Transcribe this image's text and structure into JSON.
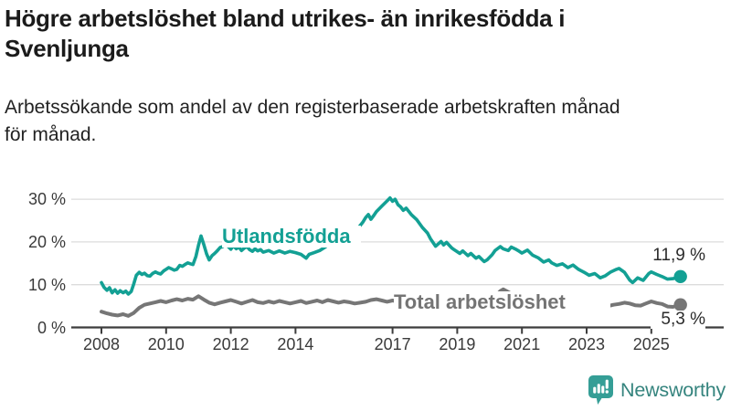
{
  "header": {
    "title": "Högre arbetslöshet bland utrikes- än inrikesfödda i\nSvenljunga",
    "subtitle": "Arbetssökande som andel av den registerbaserade arbetskraften månad\nför månad."
  },
  "colors": {
    "accent_teal": "#13a094",
    "line_gray": "#767676",
    "grid": "#dcdcdc",
    "axis": "#3d3d3d",
    "title_text": "#1b1b1b",
    "tick_text": "#3a3a3a",
    "logo_icon": "#359e96",
    "logo_text": "#35847e"
  },
  "chart_data": {
    "type": "line",
    "unit": "%",
    "grid": true,
    "y_axis": {
      "range": [
        0,
        32
      ],
      "ticks": [
        {
          "value": 0,
          "label": "0 %"
        },
        {
          "value": 10,
          "label": "10 %"
        },
        {
          "value": 20,
          "label": "20 %"
        },
        {
          "value": 30,
          "label": "30 %"
        }
      ]
    },
    "x_axis": {
      "range": [
        2008,
        2025.9
      ],
      "ticks": [
        {
          "value": 2008,
          "label": "2008"
        },
        {
          "value": 2010,
          "label": "2010"
        },
        {
          "value": 2012,
          "label": "2012"
        },
        {
          "value": 2014,
          "label": "2014"
        },
        {
          "value": 2017,
          "label": "2017"
        },
        {
          "value": 2019,
          "label": "2019"
        },
        {
          "value": 2021,
          "label": "2021"
        },
        {
          "value": 2023,
          "label": "2023"
        },
        {
          "value": 2025,
          "label": "2025"
        }
      ]
    },
    "series": [
      {
        "name": "Utlandsfödda",
        "color": "#13a094",
        "end_value": 11.9,
        "end_label": "11,9 %",
        "points": [
          [
            2008.0,
            10.5
          ],
          [
            2008.08,
            9.4
          ],
          [
            2008.17,
            8.7
          ],
          [
            2008.25,
            9.3
          ],
          [
            2008.33,
            8.1
          ],
          [
            2008.42,
            8.8
          ],
          [
            2008.5,
            8.0
          ],
          [
            2008.58,
            8.6
          ],
          [
            2008.67,
            8.1
          ],
          [
            2008.75,
            8.5
          ],
          [
            2008.83,
            7.8
          ],
          [
            2008.92,
            8.4
          ],
          [
            2009.0,
            10.2
          ],
          [
            2009.08,
            12.2
          ],
          [
            2009.17,
            12.9
          ],
          [
            2009.25,
            12.4
          ],
          [
            2009.33,
            12.7
          ],
          [
            2009.42,
            12.1
          ],
          [
            2009.5,
            12.0
          ],
          [
            2009.58,
            12.6
          ],
          [
            2009.67,
            13.0
          ],
          [
            2009.75,
            12.7
          ],
          [
            2009.83,
            12.5
          ],
          [
            2009.92,
            13.2
          ],
          [
            2010.0,
            13.6
          ],
          [
            2010.08,
            14.0
          ],
          [
            2010.17,
            13.7
          ],
          [
            2010.25,
            13.4
          ],
          [
            2010.33,
            13.6
          ],
          [
            2010.42,
            14.5
          ],
          [
            2010.5,
            14.3
          ],
          [
            2010.58,
            14.7
          ],
          [
            2010.67,
            15.1
          ],
          [
            2010.75,
            14.9
          ],
          [
            2010.83,
            14.7
          ],
          [
            2010.92,
            16.6
          ],
          [
            2011.0,
            19.2
          ],
          [
            2011.08,
            21.4
          ],
          [
            2011.17,
            19.3
          ],
          [
            2011.25,
            17.2
          ],
          [
            2011.33,
            15.8
          ],
          [
            2011.42,
            16.8
          ],
          [
            2011.5,
            17.3
          ],
          [
            2011.58,
            17.9
          ],
          [
            2011.67,
            18.7
          ],
          [
            2011.75,
            18.9
          ],
          [
            2011.83,
            19.4
          ],
          [
            2011.92,
            18.9
          ],
          [
            2012.0,
            18.3
          ],
          [
            2012.08,
            19.1
          ],
          [
            2012.17,
            18.4
          ],
          [
            2012.25,
            18.8
          ],
          [
            2012.33,
            18.0
          ],
          [
            2012.42,
            18.6
          ],
          [
            2012.5,
            18.9
          ],
          [
            2012.58,
            18.2
          ],
          [
            2012.67,
            17.8
          ],
          [
            2012.75,
            18.4
          ],
          [
            2012.83,
            17.9
          ],
          [
            2012.92,
            18.2
          ],
          [
            2013.0,
            17.6
          ],
          [
            2013.17,
            18.0
          ],
          [
            2013.33,
            17.4
          ],
          [
            2013.5,
            17.9
          ],
          [
            2013.67,
            17.4
          ],
          [
            2013.83,
            17.8
          ],
          [
            2014.0,
            17.5
          ],
          [
            2014.17,
            17.1
          ],
          [
            2014.33,
            16.2
          ],
          [
            2014.42,
            17.1
          ],
          [
            2014.58,
            17.5
          ],
          [
            2014.75,
            18.0
          ],
          [
            2014.92,
            18.8
          ],
          [
            2015.08,
            19.8
          ],
          [
            2015.25,
            20.4
          ],
          [
            2015.42,
            21.0
          ],
          [
            2015.58,
            22.0
          ],
          [
            2015.75,
            23.2
          ],
          [
            2015.83,
            22.5
          ],
          [
            2015.92,
            23.1
          ],
          [
            2016.08,
            24.6
          ],
          [
            2016.17,
            25.7
          ],
          [
            2016.25,
            26.4
          ],
          [
            2016.33,
            25.3
          ],
          [
            2016.42,
            26.2
          ],
          [
            2016.5,
            27.1
          ],
          [
            2016.67,
            28.4
          ],
          [
            2016.83,
            29.6
          ],
          [
            2016.92,
            30.3
          ],
          [
            2017.0,
            29.5
          ],
          [
            2017.08,
            30.0
          ],
          [
            2017.17,
            28.7
          ],
          [
            2017.25,
            28.2
          ],
          [
            2017.33,
            27.4
          ],
          [
            2017.42,
            27.9
          ],
          [
            2017.58,
            26.4
          ],
          [
            2017.75,
            25.2
          ],
          [
            2017.92,
            23.4
          ],
          [
            2018.08,
            22.1
          ],
          [
            2018.17,
            20.8
          ],
          [
            2018.33,
            19.0
          ],
          [
            2018.42,
            19.6
          ],
          [
            2018.5,
            20.1
          ],
          [
            2018.58,
            19.3
          ],
          [
            2018.67,
            19.9
          ],
          [
            2018.83,
            18.6
          ],
          [
            2018.92,
            18.1
          ],
          [
            2019.08,
            17.3
          ],
          [
            2019.17,
            17.9
          ],
          [
            2019.33,
            16.8
          ],
          [
            2019.42,
            17.3
          ],
          [
            2019.58,
            16.2
          ],
          [
            2019.67,
            16.6
          ],
          [
            2019.83,
            15.4
          ],
          [
            2019.92,
            15.8
          ],
          [
            2020.08,
            17.0
          ],
          [
            2020.17,
            18.0
          ],
          [
            2020.33,
            18.9
          ],
          [
            2020.42,
            18.4
          ],
          [
            2020.58,
            18.0
          ],
          [
            2020.67,
            18.8
          ],
          [
            2020.83,
            18.2
          ],
          [
            2020.92,
            17.8
          ],
          [
            2021.0,
            17.4
          ],
          [
            2021.17,
            18.1
          ],
          [
            2021.33,
            16.9
          ],
          [
            2021.5,
            16.3
          ],
          [
            2021.67,
            15.3
          ],
          [
            2021.83,
            15.8
          ],
          [
            2021.92,
            15.1
          ],
          [
            2022.08,
            14.5
          ],
          [
            2022.25,
            14.9
          ],
          [
            2022.42,
            14.0
          ],
          [
            2022.58,
            14.6
          ],
          [
            2022.75,
            13.6
          ],
          [
            2022.92,
            12.9
          ],
          [
            2023.08,
            12.2
          ],
          [
            2023.25,
            12.6
          ],
          [
            2023.42,
            11.6
          ],
          [
            2023.58,
            12.1
          ],
          [
            2023.75,
            13.0
          ],
          [
            2023.92,
            13.6
          ],
          [
            2024.0,
            13.8
          ],
          [
            2024.17,
            12.9
          ],
          [
            2024.33,
            11.1
          ],
          [
            2024.42,
            10.5
          ],
          [
            2024.58,
            11.6
          ],
          [
            2024.75,
            11.0
          ],
          [
            2024.92,
            12.6
          ],
          [
            2025.0,
            13.0
          ],
          [
            2025.17,
            12.4
          ],
          [
            2025.33,
            11.9
          ],
          [
            2025.5,
            11.3
          ],
          [
            2025.67,
            11.4
          ],
          [
            2025.9,
            11.9
          ]
        ]
      },
      {
        "name": "Total arbetslöshet",
        "color": "#767676",
        "end_value": 5.3,
        "end_label": "5,3 %",
        "points": [
          [
            2008.0,
            3.7
          ],
          [
            2008.17,
            3.3
          ],
          [
            2008.33,
            3.0
          ],
          [
            2008.5,
            2.8
          ],
          [
            2008.67,
            3.1
          ],
          [
            2008.83,
            2.7
          ],
          [
            2009.0,
            3.4
          ],
          [
            2009.17,
            4.6
          ],
          [
            2009.33,
            5.3
          ],
          [
            2009.5,
            5.6
          ],
          [
            2009.67,
            5.9
          ],
          [
            2009.83,
            6.2
          ],
          [
            2010.0,
            5.9
          ],
          [
            2010.17,
            6.3
          ],
          [
            2010.33,
            6.6
          ],
          [
            2010.5,
            6.3
          ],
          [
            2010.67,
            6.7
          ],
          [
            2010.83,
            6.5
          ],
          [
            2011.0,
            7.3
          ],
          [
            2011.17,
            6.5
          ],
          [
            2011.33,
            5.8
          ],
          [
            2011.5,
            5.4
          ],
          [
            2011.67,
            5.8
          ],
          [
            2011.83,
            6.1
          ],
          [
            2012.0,
            6.4
          ],
          [
            2012.17,
            6.0
          ],
          [
            2012.33,
            5.6
          ],
          [
            2012.5,
            6.0
          ],
          [
            2012.67,
            6.4
          ],
          [
            2012.83,
            5.9
          ],
          [
            2013.0,
            5.7
          ],
          [
            2013.17,
            6.1
          ],
          [
            2013.33,
            5.8
          ],
          [
            2013.5,
            6.2
          ],
          [
            2013.67,
            5.9
          ],
          [
            2013.83,
            5.6
          ],
          [
            2014.0,
            5.9
          ],
          [
            2014.17,
            6.2
          ],
          [
            2014.33,
            5.7
          ],
          [
            2014.5,
            6.0
          ],
          [
            2014.67,
            6.3
          ],
          [
            2014.83,
            5.9
          ],
          [
            2015.0,
            6.4
          ],
          [
            2015.17,
            6.1
          ],
          [
            2015.33,
            5.8
          ],
          [
            2015.5,
            6.1
          ],
          [
            2015.67,
            5.9
          ],
          [
            2015.83,
            5.6
          ],
          [
            2016.0,
            5.8
          ],
          [
            2016.17,
            6.0
          ],
          [
            2016.33,
            6.4
          ],
          [
            2016.5,
            6.6
          ],
          [
            2016.67,
            6.3
          ],
          [
            2016.83,
            6.0
          ],
          [
            2017.0,
            6.3
          ],
          [
            2017.25,
            5.9
          ],
          [
            2017.5,
            5.6
          ],
          [
            2017.75,
            5.3
          ],
          [
            2018.0,
            5.5
          ],
          [
            2018.25,
            5.2
          ],
          [
            2018.5,
            5.0
          ],
          [
            2018.75,
            5.2
          ],
          [
            2019.0,
            4.9
          ],
          [
            2019.25,
            5.1
          ],
          [
            2019.5,
            5.3
          ],
          [
            2019.75,
            5.5
          ],
          [
            2020.0,
            5.8
          ],
          [
            2020.17,
            7.2
          ],
          [
            2020.33,
            8.5
          ],
          [
            2020.42,
            8.9
          ],
          [
            2020.5,
            8.6
          ],
          [
            2020.67,
            7.9
          ],
          [
            2020.83,
            7.4
          ],
          [
            2021.0,
            6.8
          ],
          [
            2021.25,
            6.3
          ],
          [
            2021.5,
            5.9
          ],
          [
            2021.75,
            5.5
          ],
          [
            2022.0,
            5.2
          ],
          [
            2022.17,
            5.0
          ],
          [
            2022.33,
            4.7
          ],
          [
            2022.5,
            5.0
          ],
          [
            2022.67,
            5.4
          ],
          [
            2022.83,
            5.0
          ],
          [
            2023.0,
            4.6
          ],
          [
            2023.17,
            4.9
          ],
          [
            2023.33,
            4.5
          ],
          [
            2023.5,
            4.6
          ],
          [
            2023.67,
            5.0
          ],
          [
            2023.83,
            5.3
          ],
          [
            2024.0,
            5.5
          ],
          [
            2024.17,
            5.8
          ],
          [
            2024.33,
            5.6
          ],
          [
            2024.5,
            5.2
          ],
          [
            2024.67,
            5.1
          ],
          [
            2024.83,
            5.6
          ],
          [
            2025.0,
            6.1
          ],
          [
            2025.17,
            5.7
          ],
          [
            2025.33,
            5.5
          ],
          [
            2025.5,
            4.9
          ],
          [
            2025.67,
            4.8
          ],
          [
            2025.9,
            5.3
          ]
        ]
      }
    ]
  },
  "branding": {
    "logo_text": "Newsworthy",
    "icon": "newsworthy-speech-bubble-bar-chart-icon"
  }
}
